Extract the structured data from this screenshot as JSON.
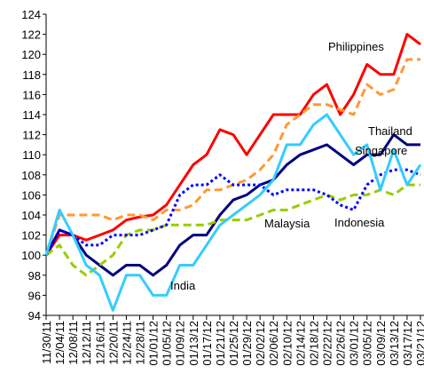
{
  "chart_data": {
    "type": "line",
    "categories": [
      "11/30/11",
      "12/04/11",
      "12/08/11",
      "12/12/11",
      "12/16/11",
      "12/20/11",
      "12/24/11",
      "12/28/11",
      "01/01/12",
      "01/05/12",
      "01/09/12",
      "01/13/12",
      "01/17/12",
      "01/21/12",
      "01/25/12",
      "01/29/12",
      "02/02/12",
      "02/06/12",
      "02/10/12",
      "02/14/12",
      "02/18/12",
      "02/22/12",
      "02/26/12",
      "03/01/12",
      "03/05/12",
      "03/09/12",
      "03/13/12",
      "03/17/12",
      "03/21/12"
    ],
    "series": [
      {
        "name": "Philippines",
        "color": "#ff0000",
        "dash": "solid",
        "values": [
          100,
          102,
          102,
          101.5,
          102,
          102.5,
          103.5,
          103.8,
          104,
          105,
          107,
          109,
          110,
          112.5,
          112,
          110,
          112,
          114,
          114,
          114,
          116,
          117,
          114,
          116,
          119,
          118,
          118,
          122,
          121
        ]
      },
      {
        "name": "Thailand",
        "color": "#ff9933",
        "dash": "dashed",
        "values": [
          100,
          104,
          104,
          104,
          104,
          103.5,
          104,
          104,
          103.5,
          104.5,
          104.5,
          105,
          106.5,
          106.5,
          107,
          107.5,
          108.5,
          110,
          113,
          114,
          115,
          115,
          114.5,
          114,
          117,
          116,
          116.5,
          119.5,
          119.5
        ]
      },
      {
        "name": "Singapore",
        "color": "#000080",
        "dash": "solid",
        "values": [
          100,
          102.5,
          102,
          100,
          99,
          98,
          99,
          99,
          98,
          99,
          101,
          102,
          102,
          104,
          105.5,
          106,
          107,
          107.5,
          109,
          110,
          110.5,
          111,
          110,
          109,
          110,
          110,
          112,
          111,
          111
        ]
      },
      {
        "name": "Malaysia",
        "color": "#99cc00",
        "dash": "dashed",
        "values": [
          100,
          101,
          99,
          98,
          99,
          100,
          102,
          102.5,
          102.5,
          103,
          103,
          103,
          103,
          103.5,
          103.5,
          103.5,
          104,
          104.5,
          104.5,
          105,
          105.5,
          106,
          105.5,
          106,
          106,
          106.5,
          106,
          107,
          107
        ]
      },
      {
        "name": "Indonesia",
        "color": "#0000ff",
        "dash": "dotted",
        "values": [
          100,
          102.5,
          102,
          101,
          101,
          102,
          102,
          102,
          102.5,
          103,
          106,
          107,
          107,
          108,
          107,
          107,
          107,
          106,
          106.5,
          106.5,
          106.5,
          106,
          105,
          104.5,
          107,
          108,
          108.5,
          108.5,
          108
        ]
      },
      {
        "name": "India",
        "color": "#33ccff",
        "dash": "solid",
        "values": [
          100,
          104.5,
          102,
          99,
          98,
          94.5,
          98,
          98,
          96,
          96,
          99,
          99,
          101,
          103,
          104,
          105,
          106,
          107.5,
          111,
          111,
          113,
          114,
          112,
          110,
          111,
          106.5,
          110.5,
          107,
          109
        ]
      }
    ],
    "ylim": [
      94,
      124
    ],
    "yticks": [
      94,
      96,
      98,
      100,
      102,
      104,
      106,
      108,
      110,
      112,
      114,
      116,
      118,
      120,
      122,
      124
    ],
    "grid": false
  }
}
